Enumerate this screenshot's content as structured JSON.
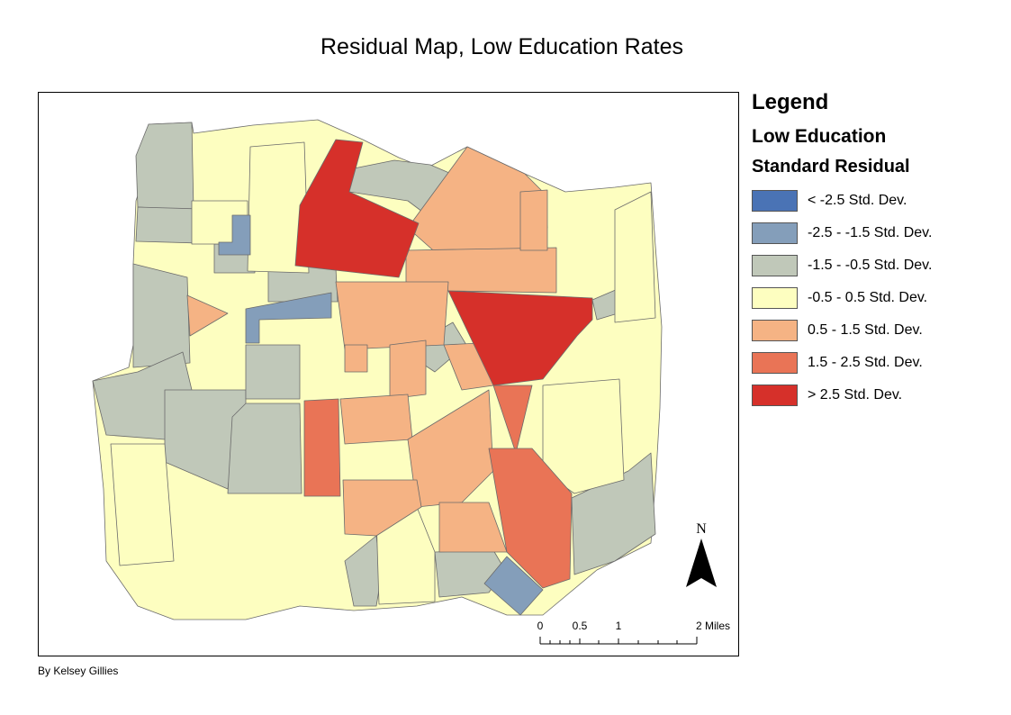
{
  "title": "Residual Map, Low Education Rates",
  "legend": {
    "title": "Legend",
    "layer_name": "Low Education",
    "field_name": "Standard Residual",
    "classes": [
      {
        "label": "< -2.5 Std. Dev.",
        "color": "#4a73b5"
      },
      {
        "label": "-2.5 - -1.5 Std. Dev.",
        "color": "#849eba"
      },
      {
        "label": "-1.5 - -0.5 Std. Dev.",
        "color": "#c0c8b9"
      },
      {
        "label": "-0.5 - 0.5 Std. Dev.",
        "color": "#fdfec0"
      },
      {
        "label": "0.5 - 1.5 Std. Dev.",
        "color": "#f5b384"
      },
      {
        "label": "1.5 - 2.5 Std. Dev.",
        "color": "#e97456"
      },
      {
        "label": "> 2.5 Std. Dev.",
        "color": "#d6302a"
      }
    ]
  },
  "north_arrow": {
    "label": "N"
  },
  "scale_bar": {
    "tick_labels": [
      "0",
      "0.5",
      "1",
      "2 Miles"
    ]
  },
  "credit": "By Kelsey Gillies"
}
